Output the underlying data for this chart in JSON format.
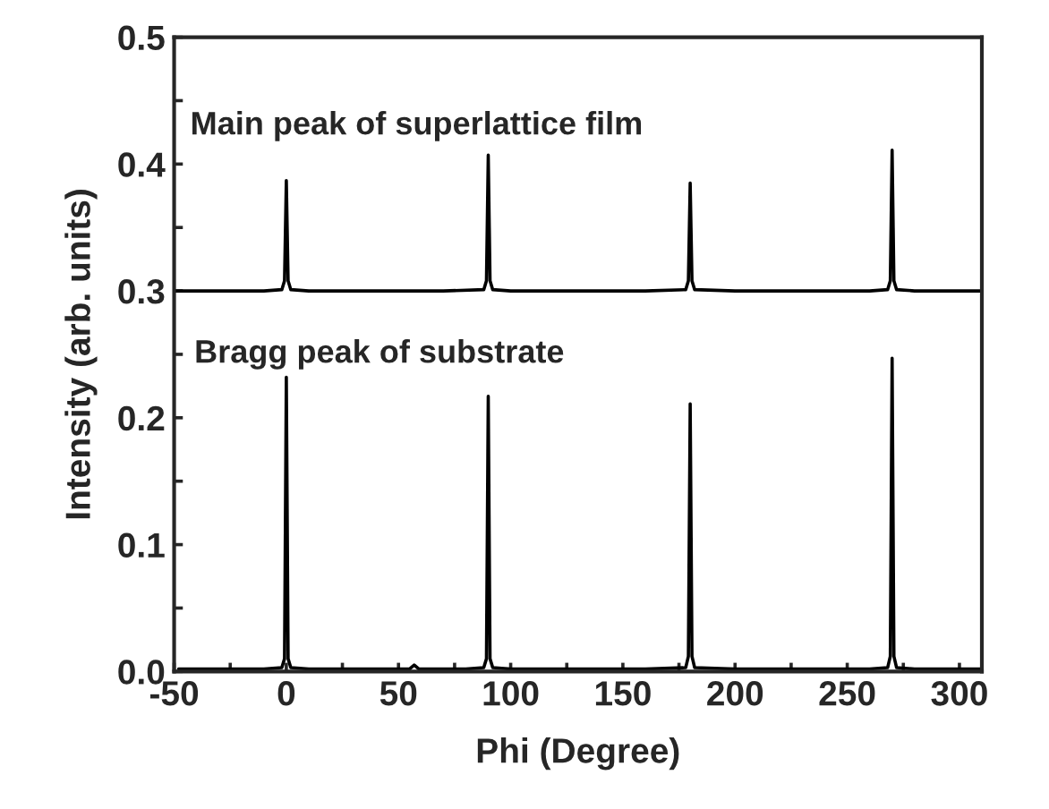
{
  "chart_data": {
    "type": "line",
    "xlabel": "Phi (Degree)",
    "ylabel": "Intensity (arb. units)",
    "xlim": [
      -50,
      310
    ],
    "ylim": [
      0,
      0.5
    ],
    "xticks": [
      -50,
      {
        "value": -25,
        "label": null
      },
      0,
      {
        "value": 25,
        "label": null
      },
      50,
      {
        "value": 75,
        "label": null
      },
      100,
      {
        "value": 125,
        "label": null
      },
      150,
      {
        "value": 175,
        "label": null
      },
      200,
      {
        "value": 225,
        "label": null
      },
      250,
      {
        "value": 275,
        "label": null
      },
      300
    ],
    "yticks": [
      {
        "value": 0,
        "label": "0.0"
      },
      {
        "value": 0.05,
        "label": null
      },
      0.1,
      {
        "value": 0.15,
        "label": null
      },
      0.2,
      {
        "value": 0.25,
        "label": null
      },
      0.3,
      {
        "value": 0.35,
        "label": null
      },
      0.4,
      {
        "value": 0.45,
        "label": null
      },
      0.5
    ],
    "grid": false,
    "legend": false,
    "marker": "none",
    "line_style": "solid",
    "annotations": [
      "Main peak of superlattice film",
      "Bragg peak of substrate"
    ],
    "series": [
      {
        "color": "#000000",
        "x": [
          -48,
          -40,
          -30,
          -20,
          -10,
          -2,
          -0.8,
          0,
          0.8,
          2,
          10,
          20,
          30,
          40,
          50,
          55,
          57,
          59,
          70,
          80,
          88,
          89.2,
          90,
          90.8,
          92,
          100,
          120,
          140,
          160,
          178,
          179.2,
          180,
          180.8,
          182,
          200,
          220,
          240,
          260,
          268,
          269.2,
          270,
          270.8,
          272,
          280,
          290,
          300,
          310
        ],
        "values": [
          0.002,
          0.002,
          0.002,
          0.002,
          0.002,
          0.003,
          0.01,
          0.232,
          0.01,
          0.003,
          0.002,
          0.002,
          0.002,
          0.002,
          0.002,
          0.002,
          0.005,
          0.002,
          0.002,
          0.002,
          0.003,
          0.01,
          0.217,
          0.01,
          0.003,
          0.002,
          0.002,
          0.002,
          0.002,
          0.003,
          0.012,
          0.211,
          0.012,
          0.003,
          0.002,
          0.002,
          0.002,
          0.002,
          0.003,
          0.012,
          0.247,
          0.012,
          0.003,
          0.002,
          0.002,
          0.002,
          0.002
        ]
      },
      {
        "color": "#000000",
        "x": [
          -50,
          -40,
          -30,
          -20,
          -10,
          -2,
          -0.8,
          0,
          0.8,
          2,
          10,
          30,
          50,
          70,
          88,
          89.2,
          90,
          90.8,
          92,
          100,
          120,
          140,
          160,
          178,
          179.2,
          180,
          180.8,
          182,
          200,
          220,
          240,
          260,
          268,
          269.2,
          270,
          270.8,
          272,
          280,
          290,
          300,
          310
        ],
        "values": [
          0.3,
          0.3,
          0.3,
          0.3,
          0.3,
          0.301,
          0.308,
          0.387,
          0.308,
          0.301,
          0.3,
          0.3,
          0.3,
          0.3,
          0.301,
          0.308,
          0.407,
          0.308,
          0.301,
          0.3,
          0.3,
          0.3,
          0.3,
          0.301,
          0.308,
          0.385,
          0.308,
          0.301,
          0.3,
          0.3,
          0.3,
          0.3,
          0.301,
          0.308,
          0.411,
          0.308,
          0.301,
          0.3,
          0.3,
          0.3,
          0.3
        ]
      }
    ]
  }
}
